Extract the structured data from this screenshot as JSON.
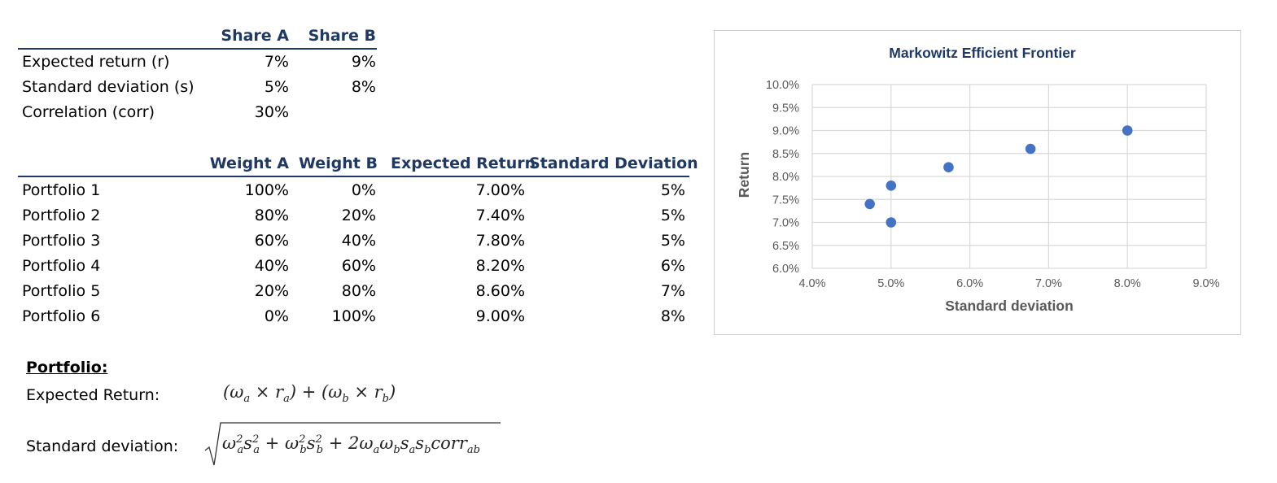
{
  "inputs": {
    "headers": [
      "Share A",
      "Share B"
    ],
    "rows": [
      {
        "label": "Expected return (r)",
        "a": "7%",
        "b": "9%"
      },
      {
        "label": "Standard deviation (s)",
        "a": "5%",
        "b": "8%"
      },
      {
        "label": "Correlation (corr)",
        "a": "30%",
        "b": ""
      }
    ]
  },
  "portfolios": {
    "headers": [
      "Weight A",
      "Weight B",
      "Expected Return",
      "Standard Deviation"
    ],
    "rows": [
      {
        "label": "Portfolio 1",
        "wa": "100%",
        "wb": "0%",
        "er": "7.00%",
        "sd": "5%"
      },
      {
        "label": "Portfolio 2",
        "wa": "80%",
        "wb": "20%",
        "er": "7.40%",
        "sd": "5%"
      },
      {
        "label": "Portfolio 3",
        "wa": "60%",
        "wb": "40%",
        "er": "7.80%",
        "sd": "5%"
      },
      {
        "label": "Portfolio 4",
        "wa": "40%",
        "wb": "60%",
        "er": "8.20%",
        "sd": "6%"
      },
      {
        "label": "Portfolio 5",
        "wa": "20%",
        "wb": "80%",
        "er": "8.60%",
        "sd": "7%"
      },
      {
        "label": "Portfolio 6",
        "wa": "0%",
        "wb": "100%",
        "er": "9.00%",
        "sd": "8%"
      }
    ]
  },
  "formulas": {
    "heading": "Portfolio:",
    "expected_label": "Expected Return:",
    "sd_label": "Standard deviation:"
  },
  "chart_data": {
    "type": "scatter",
    "title": "Markowitz Efficient Frontier",
    "xlabel": "Standard deviation",
    "ylabel": "Return",
    "xlim": [
      0.04,
      0.09
    ],
    "ylim": [
      0.06,
      0.1
    ],
    "x_ticks": [
      0.04,
      0.05,
      0.06,
      0.07,
      0.08,
      0.09
    ],
    "y_ticks": [
      0.06,
      0.065,
      0.07,
      0.075,
      0.08,
      0.085,
      0.09,
      0.095,
      0.1
    ],
    "x_tick_labels": [
      "4.0%",
      "5.0%",
      "6.0%",
      "7.0%",
      "8.0%",
      "9.0%"
    ],
    "y_tick_labels": [
      "6.0%",
      "6.5%",
      "7.0%",
      "7.5%",
      "8.0%",
      "8.5%",
      "9.0%",
      "9.5%",
      "10.0%"
    ],
    "grid": true,
    "marker_color": "#4472c4",
    "points": [
      {
        "x": 0.05,
        "y": 0.07
      },
      {
        "x": 0.0473,
        "y": 0.074
      },
      {
        "x": 0.05,
        "y": 0.078
      },
      {
        "x": 0.0573,
        "y": 0.082
      },
      {
        "x": 0.0677,
        "y": 0.086
      },
      {
        "x": 0.08,
        "y": 0.09
      }
    ]
  }
}
